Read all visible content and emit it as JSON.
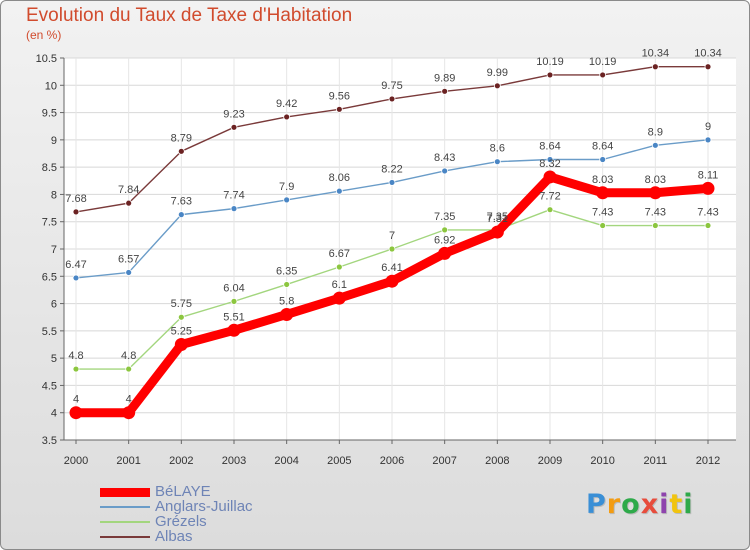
{
  "chart_data": {
    "type": "line",
    "title": "Evolution du Taux de Taxe d'Habitation",
    "subtitle": "(en %)",
    "x": [
      "2000",
      "2001",
      "2002",
      "2003",
      "2004",
      "2005",
      "2006",
      "2007",
      "2008",
      "2009",
      "2010",
      "2011",
      "2012"
    ],
    "ylim": [
      3.5,
      10.5
    ],
    "yticks": [
      "3.5",
      "4",
      "4.5",
      "5",
      "5.5",
      "6",
      "6.5",
      "7",
      "7.5",
      "8",
      "8.5",
      "9",
      "9.5",
      "10",
      "10.5"
    ],
    "grid": true,
    "legend_position": "bottom-left",
    "series": [
      {
        "name": "BéLAYE",
        "color": "#ff0000",
        "point_color": "#ff0000",
        "values": [
          4,
          4,
          5.25,
          5.51,
          5.8,
          6.1,
          6.41,
          6.92,
          7.31,
          8.32,
          8.03,
          8.03,
          8.11
        ],
        "labels": [
          "4",
          "4",
          "5.25",
          "5.51",
          "5.8",
          "6.1",
          "6.41",
          "6.92",
          "7.31",
          "8.32",
          "8.03",
          "8.03",
          "8.11"
        ]
      },
      {
        "name": "Anglars-Juillac",
        "color": "#6a9cc8",
        "point_color": "#4a86c5",
        "values": [
          6.47,
          6.57,
          7.63,
          7.74,
          7.9,
          8.06,
          8.22,
          8.43,
          8.6,
          8.64,
          8.64,
          8.9,
          9
        ],
        "labels": [
          "6.47",
          "6.57",
          "7.63",
          "7.74",
          "7.9",
          "8.06",
          "8.22",
          "8.43",
          "8.6",
          "8.64",
          "8.64",
          "8.9",
          "9"
        ]
      },
      {
        "name": "Grézels",
        "color": "#a3d67e",
        "point_color": "#8cc63f",
        "values": [
          4.8,
          4.8,
          5.75,
          6.04,
          6.35,
          6.67,
          7,
          7.35,
          7.35,
          7.72,
          7.43,
          7.43,
          7.43
        ],
        "labels": [
          "4.8",
          "4.8",
          "5.75",
          "6.04",
          "6.35",
          "6.67",
          "7",
          "7.35",
          "7.35",
          "7.72",
          "7.43",
          "7.43",
          "7.43"
        ]
      },
      {
        "name": "Albas",
        "color": "#7a3a3a",
        "point_color": "#6b2222",
        "values": [
          7.68,
          7.84,
          8.79,
          9.23,
          9.42,
          9.56,
          9.75,
          9.89,
          9.99,
          10.19,
          10.19,
          10.34,
          10.34
        ],
        "labels": [
          "7.68",
          "7.84",
          "8.79",
          "9.23",
          "9.42",
          "9.56",
          "9.75",
          "9.89",
          "9.99",
          "10.19",
          "10.19",
          "10.34",
          "10.34"
        ]
      }
    ]
  },
  "logo": {
    "text": "Proxiti"
  }
}
